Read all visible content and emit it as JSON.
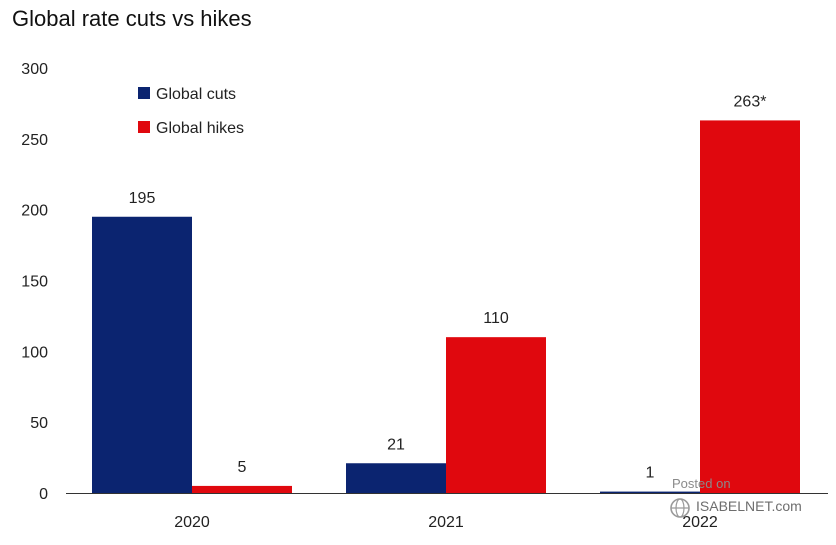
{
  "chart_data": {
    "type": "bar",
    "title": "Global rate cuts vs hikes",
    "categories": [
      "2020",
      "2021",
      "2022"
    ],
    "series": [
      {
        "name": "Global cuts",
        "values": [
          195,
          21,
          1
        ],
        "color": "#0b2470",
        "labels": [
          "195",
          "21",
          "1"
        ]
      },
      {
        "name": "Global hikes",
        "values": [
          5,
          110,
          263
        ],
        "color": "#e0080e",
        "labels": [
          "5",
          "110",
          "263*"
        ]
      }
    ],
    "yticks": [
      0,
      50,
      100,
      150,
      200,
      250,
      300
    ],
    "ylim": [
      0,
      300
    ],
    "grid": false,
    "legend_position": "top-left"
  },
  "watermark": {
    "line1": "Posted on",
    "line2": "ISABELNET.com",
    "icon": "globe-icon"
  }
}
